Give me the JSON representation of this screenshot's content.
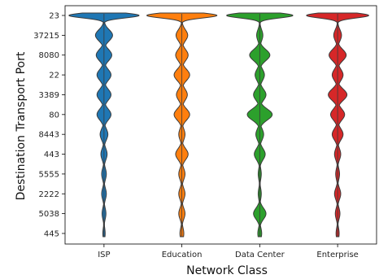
{
  "chart_data": {
    "type": "violin",
    "title": "",
    "xlabel": "Network Class",
    "ylabel": "Destination Transport Port",
    "categories": [
      "ISP",
      "Education",
      "Data Center",
      "Enterprise"
    ],
    "ports": [
      "23",
      "37215",
      "8080",
      "22",
      "3389",
      "80",
      "8443",
      "443",
      "5555",
      "2222",
      "5038",
      "445"
    ],
    "series": [
      {
        "category": "ISP",
        "color": "#1f77b4",
        "peak_width": [
          0.9,
          0.22,
          0.2,
          0.18,
          0.18,
          0.18,
          0.1,
          0.08,
          0.06,
          0.06,
          0.05,
          0.03
        ]
      },
      {
        "category": "Education",
        "color": "#ff7f0e",
        "peak_width": [
          0.9,
          0.15,
          0.16,
          0.2,
          0.14,
          0.2,
          0.08,
          0.16,
          0.08,
          0.08,
          0.08,
          0.05
        ]
      },
      {
        "category": "Data Center",
        "color": "#2ca02c",
        "peak_width": [
          0.85,
          0.08,
          0.26,
          0.12,
          0.16,
          0.32,
          0.1,
          0.14,
          0.04,
          0.04,
          0.16,
          0.05
        ]
      },
      {
        "category": "Enterprise",
        "color": "#d62728",
        "peak_width": [
          0.8,
          0.1,
          0.22,
          0.14,
          0.24,
          0.18,
          0.14,
          0.08,
          0.05,
          0.08,
          0.06,
          0.04
        ]
      }
    ],
    "grid": false,
    "legend": "none"
  }
}
